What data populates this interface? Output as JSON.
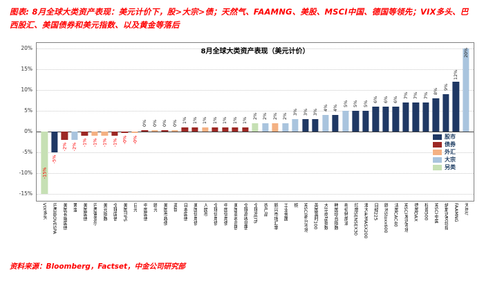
{
  "page": {
    "header_prefix": "图表: ",
    "header_text": "8月全球大类资产表现：美元计价下，股>大宗>债；天然气、FAAMNG、美股、MSCI中国、德国等领先；VIX多头、巴西股汇、美国债券和美元指数、以及黄金等落后",
    "footer": "资料来源：Bloomberg，Factset，中金公司研究部"
  },
  "chart_data": {
    "type": "bar",
    "title": "8月全球大类资产表现（美元计价）",
    "ylabel": "",
    "xlabel": "",
    "ylim": [
      -15,
      20
    ],
    "ytick_step": 5,
    "ytick_labels": [
      "20%",
      "15%",
      "10%",
      "5%",
      "0%",
      "-5%",
      "-10%",
      "-15%"
    ],
    "grid": "dotted horizontal",
    "legend_position": "middle-right inside plot",
    "negative_label_color": "#fe0000",
    "positive_label_color": "#262626",
    "legend": [
      {
        "label": "股市",
        "color": "#1f3864"
      },
      {
        "label": "债券",
        "color": "#9c2824"
      },
      {
        "label": "外汇",
        "color": "#f4b183"
      },
      {
        "label": "大宗",
        "color": "#a9c4de"
      },
      {
        "label": "另类",
        "color": "#c6e0b4"
      }
    ],
    "bars": [
      {
        "label": "VIX多头",
        "category": "另类",
        "value": -15,
        "display": "-15%"
      },
      {
        "label": "巴西IBOVESPA",
        "category": "股市",
        "value": -5,
        "display": "-5%"
      },
      {
        "label": "美国长端国债",
        "category": "债券",
        "value": -2,
        "display": "-2%"
      },
      {
        "label": "黄金",
        "category": "大宗",
        "value": -2,
        "display": "-2%"
      },
      {
        "label": "美国国债",
        "category": "债券",
        "value": -1,
        "display": "-1%"
      },
      {
        "label": "巴西雷亚尔",
        "category": "外汇",
        "value": -1,
        "display": "-1%"
      },
      {
        "label": "美元指数",
        "category": "外汇",
        "value": -1,
        "display": "-1%"
      },
      {
        "label": "全球国债",
        "category": "债券",
        "value": -1,
        "display": "-1%"
      },
      {
        "label": "美国TIPS",
        "category": "债券",
        "value": -0.3,
        "display": "-0%"
      },
      {
        "label": "日元",
        "category": "外汇",
        "value": -0.3,
        "display": "-0%"
      },
      {
        "label": "中国国债",
        "category": "债券",
        "value": 0.3,
        "display": "0%"
      },
      {
        "label": "欧元",
        "category": "外汇",
        "value": 0.3,
        "display": "0%"
      },
      {
        "label": "美国市政债",
        "category": "债券",
        "value": 0.4,
        "display": "0%"
      },
      {
        "label": "英镑",
        "category": "外汇",
        "value": 0.4,
        "display": "0%"
      },
      {
        "label": "日本国债",
        "category": "债券",
        "value": 1,
        "display": "1%"
      },
      {
        "label": "美国信用债",
        "category": "债券",
        "value": 1,
        "display": "1%"
      },
      {
        "label": "人民币",
        "category": "外汇",
        "value": 1,
        "display": "1%"
      },
      {
        "label": "全球信用债",
        "category": "债券",
        "value": 1,
        "display": "1%"
      },
      {
        "label": "中国信用债",
        "category": "债券",
        "value": 1,
        "display": "1%"
      },
      {
        "label": "美国高收益债",
        "category": "债券",
        "value": 1,
        "display": "1%"
      },
      {
        "label": "全球高收益债",
        "category": "债券",
        "value": 1,
        "display": "1%"
      },
      {
        "label": "全球REITs",
        "category": "另类",
        "value": 2,
        "display": "2%"
      },
      {
        "label": "农产品",
        "category": "大宗",
        "value": 2,
        "display": "2%"
      },
      {
        "label": "新兴市场汇率",
        "category": "外汇",
        "value": 2,
        "display": "2%"
      },
      {
        "label": "工业金属",
        "category": "大宗",
        "value": 2,
        "display": "2%"
      },
      {
        "label": "铜",
        "category": "大宗",
        "value": 3,
        "display": "3%"
      },
      {
        "label": "MSCI新兴市场",
        "category": "股市",
        "value": 3,
        "display": "3%"
      },
      {
        "label": "英国富时100",
        "category": "股市",
        "value": 3,
        "display": "3%"
      },
      {
        "label": "大宗商品指数",
        "category": "大宗",
        "value": 4,
        "display": "4%"
      },
      {
        "label": "韩国综合指数",
        "category": "股市",
        "value": 4,
        "display": "4%"
      },
      {
        "label": "布伦特原油",
        "category": "大宗",
        "value": 5,
        "display": "5%"
      },
      {
        "label": "印度SENSEX30",
        "category": "股市",
        "value": 5,
        "display": "5%"
      },
      {
        "label": "澳大利亚ASX200",
        "category": "股市",
        "value": 5,
        "display": "5%"
      },
      {
        "label": "日经225",
        "category": "股市",
        "value": 6,
        "display": "6%"
      },
      {
        "label": "欧洲Stoxx600",
        "category": "股市",
        "value": 6,
        "display": "6%"
      },
      {
        "label": "法国CAC40",
        "category": "股市",
        "value": 6,
        "display": "6%"
      },
      {
        "label": "MSCI发达市场",
        "category": "股市",
        "value": 7,
        "display": "7%"
      },
      {
        "label": "德国DAX",
        "category": "股市",
        "value": 7,
        "display": "7%"
      },
      {
        "label": "标普500",
        "category": "股市",
        "value": 7,
        "display": "7%"
      },
      {
        "label": "MSCI中国",
        "category": "股市",
        "value": 8,
        "display": "8%"
      },
      {
        "label": "纳斯达克综指",
        "category": "股市",
        "value": 9,
        "display": "9%"
      },
      {
        "label": "FAAMNG",
        "category": "股市",
        "value": 12,
        "display": "12%"
      },
      {
        "label": "天然气",
        "category": "大宗",
        "value": 20,
        "display": "20%"
      }
    ]
  }
}
